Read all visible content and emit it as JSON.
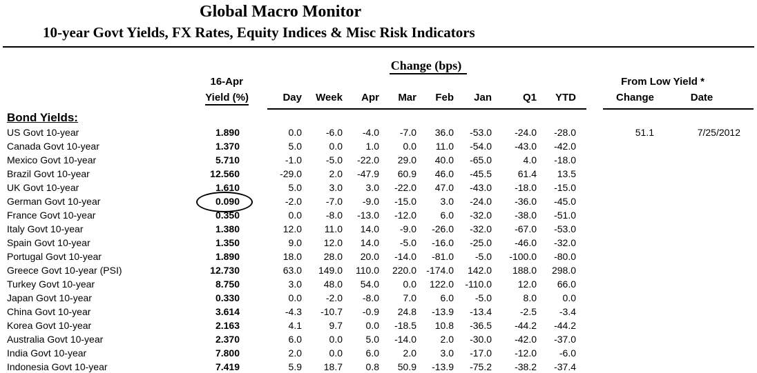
{
  "header": {
    "title": "Global Macro Monitor",
    "subtitle": "10-year Govt Yields, FX Rates, Equity Indices & Misc Risk Indicators"
  },
  "table": {
    "group_header": "Change (bps)",
    "yield_header_line1": "16-Apr",
    "yield_header_line2": "Yield (%)",
    "change_columns": [
      "Day",
      "Week",
      "Apr",
      "Mar",
      "Feb",
      "Jan",
      "Q1",
      "YTD"
    ],
    "from_low": {
      "header": "From Low Yield *",
      "change_label": "Change",
      "date_label": "Date"
    },
    "section_label": "Bond Yields:",
    "rows": [
      {
        "label": "US Govt 10-year",
        "yield": "1.890",
        "changes": [
          "0.0",
          "-6.0",
          "-4.0",
          "-7.0",
          "36.0",
          "-53.0",
          "-24.0",
          "-28.0"
        ],
        "low_change": "51.1",
        "low_date": "7/25/2012"
      },
      {
        "label": "Canada Govt 10-year",
        "yield": "1.370",
        "changes": [
          "5.0",
          "0.0",
          "1.0",
          "0.0",
          "11.0",
          "-54.0",
          "-43.0",
          "-42.0"
        ]
      },
      {
        "label": "Mexico Govt 10-year",
        "yield": "5.710",
        "changes": [
          "-1.0",
          "-5.0",
          "-22.0",
          "29.0",
          "40.0",
          "-65.0",
          "4.0",
          "-18.0"
        ]
      },
      {
        "label": "Brazil Govt 10-year",
        "yield": "12.560",
        "changes": [
          "-29.0",
          "2.0",
          "-47.9",
          "60.9",
          "46.0",
          "-45.5",
          "61.4",
          "13.5"
        ]
      },
      {
        "label": "UK Govt 10-year",
        "yield": "1.610",
        "changes": [
          "5.0",
          "3.0",
          "3.0",
          "-22.0",
          "47.0",
          "-43.0",
          "-18.0",
          "-15.0"
        ]
      },
      {
        "label": "German Govt 10-year",
        "yield": "0.090",
        "changes": [
          "-2.0",
          "-7.0",
          "-9.0",
          "-15.0",
          "3.0",
          "-24.0",
          "-36.0",
          "-45.0"
        ],
        "circled": true
      },
      {
        "label": "France Govt 10-year",
        "yield": "0.350",
        "changes": [
          "0.0",
          "-8.0",
          "-13.0",
          "-12.0",
          "6.0",
          "-32.0",
          "-38.0",
          "-51.0"
        ]
      },
      {
        "label": "Italy Govt 10-year",
        "yield": "1.380",
        "changes": [
          "12.0",
          "11.0",
          "14.0",
          "-9.0",
          "-26.0",
          "-32.0",
          "-67.0",
          "-53.0"
        ]
      },
      {
        "label": "Spain Govt 10-year",
        "yield": "1.350",
        "changes": [
          "9.0",
          "12.0",
          "14.0",
          "-5.0",
          "-16.0",
          "-25.0",
          "-46.0",
          "-32.0"
        ]
      },
      {
        "label": "Portugal Govt 10-year",
        "yield": "1.890",
        "changes": [
          "18.0",
          "28.0",
          "20.0",
          "-14.0",
          "-81.0",
          "-5.0",
          "-100.0",
          "-80.0"
        ]
      },
      {
        "label": "Greece Govt 10-year (PSI)",
        "yield": "12.730",
        "changes": [
          "63.0",
          "149.0",
          "110.0",
          "220.0",
          "-174.0",
          "142.0",
          "188.0",
          "298.0"
        ]
      },
      {
        "label": "Turkey Govt 10-year",
        "yield": "8.750",
        "changes": [
          "3.0",
          "48.0",
          "54.0",
          "0.0",
          "122.0",
          "-110.0",
          "12.0",
          "66.0"
        ]
      },
      {
        "label": "Japan Govt 10-year",
        "yield": "0.330",
        "changes": [
          "0.0",
          "-2.0",
          "-8.0",
          "7.0",
          "6.0",
          "-5.0",
          "8.0",
          "0.0"
        ]
      },
      {
        "label": "China Govt 10-year",
        "yield": "3.614",
        "changes": [
          "-4.3",
          "-10.7",
          "-0.9",
          "24.8",
          "-13.9",
          "-13.4",
          "-2.5",
          "-3.4"
        ]
      },
      {
        "label": "Korea Govt 10-year",
        "yield": "2.163",
        "changes": [
          "4.1",
          "9.7",
          "0.0",
          "-18.5",
          "10.8",
          "-36.5",
          "-44.2",
          "-44.2"
        ]
      },
      {
        "label": "Australia Govt 10-year",
        "yield": "2.370",
        "changes": [
          "6.0",
          "0.0",
          "5.0",
          "-14.0",
          "2.0",
          "-30.0",
          "-42.0",
          "-37.0"
        ]
      },
      {
        "label": "India Govt 10-year",
        "yield": "7.800",
        "changes": [
          "2.0",
          "0.0",
          "6.0",
          "2.0",
          "3.0",
          "-17.0",
          "-12.0",
          "-6.0"
        ]
      },
      {
        "label": "Indonesia Govt 10-year",
        "yield": "7.419",
        "changes": [
          "5.9",
          "18.7",
          "0.8",
          "50.9",
          "-13.9",
          "-75.2",
          "-38.2",
          "-37.4"
        ]
      }
    ]
  },
  "annotation": {
    "circled_row": "German Govt 10-year",
    "circled_value": "0.090"
  },
  "colors": {
    "text": "#000000",
    "background": "#ffffff"
  }
}
